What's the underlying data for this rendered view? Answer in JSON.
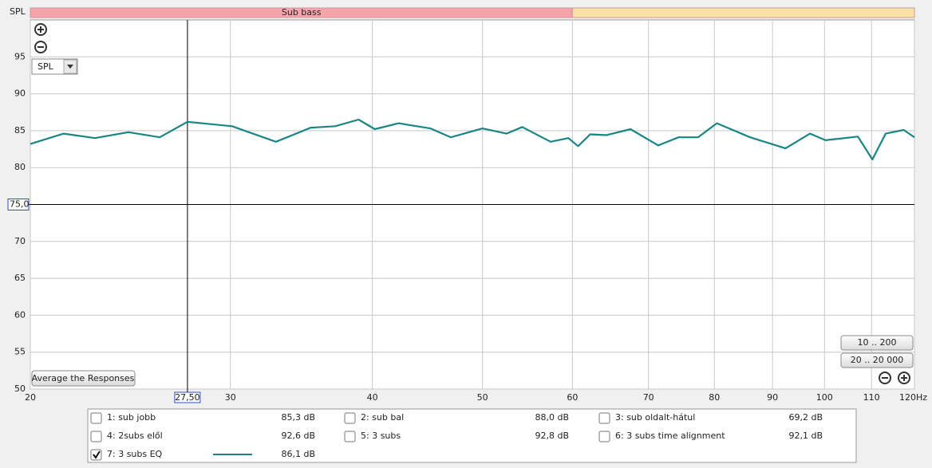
{
  "chart_data": {
    "type": "line",
    "ylabel": "SPL",
    "ylim": [
      50,
      100
    ],
    "yticks": [
      50,
      55,
      60,
      65,
      70,
      75,
      80,
      85,
      90,
      95
    ],
    "xlim": [
      20,
      120
    ],
    "xticks": [
      20,
      30,
      40,
      50,
      60,
      70,
      80,
      90,
      100,
      110,
      {
        "value": 120,
        "label": "120Hz"
      }
    ],
    "xscale": "log",
    "grid": true,
    "bands": [
      {
        "label": "Sub bass",
        "from": 20,
        "to": 60,
        "color": "#f7a3ab"
      },
      {
        "from": 60,
        "to": 120,
        "color": "#f8e2a8"
      }
    ],
    "cursor": {
      "x": {
        "value": 27.5,
        "label": "27,50"
      },
      "y": {
        "value": 75,
        "label": "75,0"
      }
    },
    "series": [
      {
        "color": "#1a8585",
        "x": [
          20,
          21.4,
          22.8,
          24.4,
          26.0,
          27.5,
          30.1,
          32.9,
          35.3,
          37.1,
          38.9,
          40.2,
          42.2,
          45.0,
          46.9,
          50.0,
          52.5,
          54.2,
          57.4,
          59.5,
          60.7,
          62.2,
          64.3,
          67.5,
          71.4,
          74.4,
          77.4,
          80.4,
          86.0,
          92.4,
          97.1,
          100.2,
          107,
          110.2,
          113.2,
          117.4,
          120
        ],
        "values": [
          83.2,
          84.6,
          84.0,
          84.8,
          84.1,
          86.2,
          85.6,
          83.5,
          85.4,
          85.6,
          86.5,
          85.2,
          86.0,
          85.3,
          84.1,
          85.3,
          84.6,
          85.5,
          83.5,
          84.0,
          82.9,
          84.5,
          84.4,
          85.2,
          83.0,
          84.1,
          84.1,
          86.0,
          84.1,
          82.6,
          84.6,
          83.7,
          84.2,
          81.1,
          84.6,
          85.1,
          84.1
        ]
      }
    ]
  },
  "controls": {
    "dropdown": "SPL",
    "average": "Average the Responses",
    "range1": "10 .. 200",
    "range2": "20 .. 20 000"
  },
  "legend": [
    {
      "name": "1: sub jobb",
      "level": "85,3 dB",
      "color": "#a01818",
      "checked": false
    },
    {
      "name": "2: sub bal",
      "level": "88,0 dB",
      "color": "#2a8a2a",
      "checked": false
    },
    {
      "name": "3: sub oldalt-hátul",
      "level": "69,2 dB",
      "color": "#4848a8",
      "checked": false
    },
    {
      "name": "4: 2subs elől",
      "level": "92,6 dB",
      "color": "#d07818",
      "checked": false
    },
    {
      "name": "5: 3 subs",
      "level": "92,8 dB",
      "color": "#1e8a1e",
      "checked": false
    },
    {
      "name": "6: 3 subs time alignment",
      "level": "92,1 dB",
      "color": "#106a8a",
      "checked": false
    },
    {
      "name": "7: 3 subs EQ",
      "level": "86,1 dB",
      "color": "#1a8585",
      "checked": true
    }
  ]
}
